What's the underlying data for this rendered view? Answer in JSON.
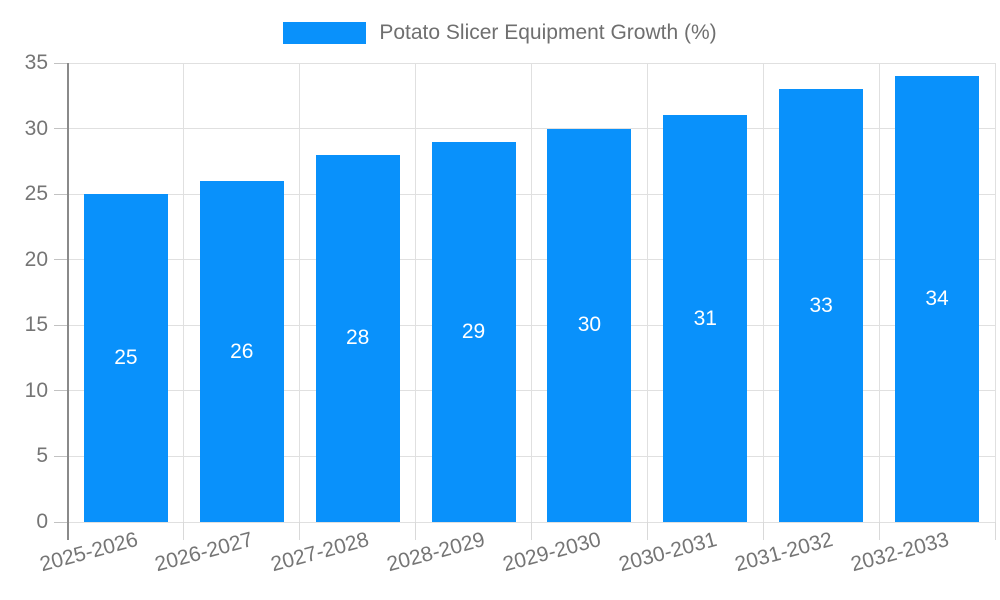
{
  "legend": {
    "label": "Potato Slicer Equipment Growth (%)"
  },
  "chart_data": {
    "type": "bar",
    "title": "Potato Slicer Equipment Growth (%)",
    "categories": [
      "2025-2026",
      "2026-2027",
      "2027-2028",
      "2028-2029",
      "2029-2030",
      "2030-2031",
      "2031-2032",
      "2032-2033"
    ],
    "values": [
      25,
      26,
      28,
      29,
      30,
      31,
      33,
      34
    ],
    "xlabel": "",
    "ylabel": "",
    "ylim": [
      0,
      35
    ],
    "yticks": [
      0,
      5,
      10,
      15,
      20,
      25,
      30,
      35
    ],
    "grid": true,
    "legend_position": "top-center",
    "value_labels": "inside-center"
  },
  "colors": {
    "bar": "#0991fb",
    "grid": "#e0e0e0",
    "axis": "#8a8a8a",
    "ytick_mark": "#c2c2c2",
    "xtick_mark": "#d9d9d9",
    "tick_text": "#757575",
    "legend_text": "#6f6f6f",
    "value_label_text": "#ffffff",
    "background": "#ffffff"
  }
}
